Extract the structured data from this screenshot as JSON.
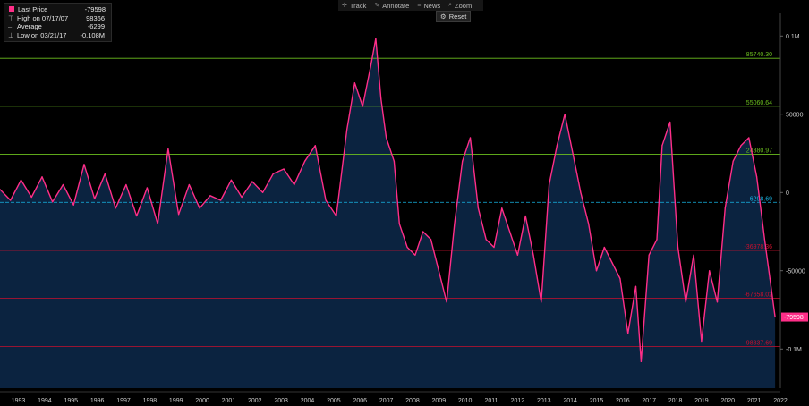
{
  "legend": {
    "last_price_label": "Last Price",
    "last_price_value": "-79598",
    "high_label": "High on 07/17/07",
    "high_value": "98366",
    "average_label": "Average",
    "average_value": "-6299",
    "low_label": "Low on 03/21/17",
    "low_value": "-0.108M"
  },
  "toolbar": {
    "track": "Track",
    "annotate": "Annotate",
    "news": "News",
    "zoom": "Zoom",
    "reset": "Reset"
  },
  "icons": {
    "track": "crosshair-icon",
    "annotate": "pencil-icon",
    "news": "news-icon",
    "zoom": "magnifier-icon",
    "reset": "reset-icon"
  },
  "colors": {
    "series": "#ff2e88",
    "fill": "#0b2340",
    "average": "#17b6e6",
    "green_levels": "#6cbf1e",
    "red_levels": "#c8102e",
    "axis_text": "#cccccc"
  },
  "chart_data": {
    "type": "area",
    "title": "",
    "xlabel": "",
    "ylabel": "",
    "x_tick_labels": [
      "1993",
      "1994",
      "1995",
      "1996",
      "1997",
      "1998",
      "1999",
      "2000",
      "2001",
      "2002",
      "2003",
      "2004",
      "2005",
      "2006",
      "2007",
      "2008",
      "2009",
      "2010",
      "2011",
      "2012",
      "2013",
      "2014",
      "2015",
      "2016",
      "2017",
      "2018",
      "2019",
      "2020",
      "2021",
      "2022"
    ],
    "y_tick_labels": [
      {
        "value": 100000,
        "label": "0.1M"
      },
      {
        "value": 50000,
        "label": "50000"
      },
      {
        "value": 0,
        "label": "0"
      },
      {
        "value": -50000,
        "label": "-50000"
      },
      {
        "value": -100000,
        "label": "-0.1M"
      }
    ],
    "ylim": [
      -125000,
      115000
    ],
    "xlim": [
      1992.8,
      2022.5
    ],
    "grid": false,
    "series": [
      {
        "name": "Last Price",
        "x": [
          1992.8,
          1993.2,
          1993.6,
          1994.0,
          1994.4,
          1994.8,
          1995.2,
          1995.6,
          1996.0,
          1996.4,
          1996.8,
          1997.2,
          1997.6,
          1998.0,
          1998.4,
          1998.8,
          1999.2,
          1999.6,
          2000.0,
          2000.4,
          2000.8,
          2001.2,
          2001.6,
          2002.0,
          2002.4,
          2002.8,
          2003.2,
          2003.6,
          2004.0,
          2004.4,
          2004.8,
          2005.2,
          2005.6,
          2006.0,
          2006.3,
          2006.6,
          2006.9,
          2007.1,
          2007.3,
          2007.5,
          2007.8,
          2008.0,
          2008.3,
          2008.6,
          2008.9,
          2009.2,
          2009.5,
          2009.8,
          2010.1,
          2010.4,
          2010.7,
          2011.0,
          2011.3,
          2011.6,
          2011.9,
          2012.2,
          2012.5,
          2012.8,
          2013.1,
          2013.4,
          2013.7,
          2014.0,
          2014.3,
          2014.6,
          2014.9,
          2015.2,
          2015.5,
          2015.8,
          2016.1,
          2016.4,
          2016.7,
          2017.0,
          2017.2,
          2017.5,
          2017.8,
          2018.0,
          2018.3,
          2018.6,
          2018.9,
          2019.2,
          2019.5,
          2019.8,
          2020.1,
          2020.4,
          2020.7,
          2021.0,
          2021.3,
          2021.6,
          2021.9,
          2022.1,
          2022.3
        ],
        "values": [
          2000,
          -5000,
          8000,
          -3000,
          10000,
          -6000,
          5000,
          -8000,
          18000,
          -4000,
          12000,
          -10000,
          5000,
          -15000,
          3000,
          -20000,
          28000,
          -14000,
          5000,
          -10000,
          -2000,
          -5000,
          8000,
          -3000,
          7000,
          0,
          12000,
          15000,
          5000,
          20000,
          30000,
          -5000,
          -15000,
          40000,
          70000,
          55000,
          80000,
          98366,
          60000,
          35000,
          20000,
          -20000,
          -35000,
          -40000,
          -25000,
          -30000,
          -50000,
          -70000,
          -20000,
          20000,
          35000,
          -10000,
          -30000,
          -35000,
          -10000,
          -25000,
          -40000,
          -15000,
          -40000,
          -70000,
          5000,
          30000,
          50000,
          25000,
          0,
          -20000,
          -50000,
          -35000,
          -45000,
          -55000,
          -90000,
          -60000,
          -108000,
          -40000,
          -30000,
          30000,
          45000,
          -35000,
          -70000,
          -40000,
          -95000,
          -50000,
          -70000,
          -10000,
          20000,
          30000,
          35000,
          10000,
          -30000,
          -55000,
          -79598
        ]
      }
    ],
    "reference_lines": [
      {
        "value": 85740.3,
        "label": "85740.30",
        "kind": "green"
      },
      {
        "value": 55060.64,
        "label": "55060.64",
        "kind": "green"
      },
      {
        "value": 24380.97,
        "label": "24380.97",
        "kind": "green"
      },
      {
        "value": -6298.69,
        "label": "-6298.69",
        "kind": "average"
      },
      {
        "value": -36978.36,
        "label": "-36978.36",
        "kind": "red"
      },
      {
        "value": -67658.02,
        "label": "-67658.02",
        "kind": "red"
      },
      {
        "value": -98337.69,
        "label": "-98337.69",
        "kind": "red"
      }
    ],
    "last_value": {
      "value": -79598,
      "label": "-79598"
    }
  }
}
